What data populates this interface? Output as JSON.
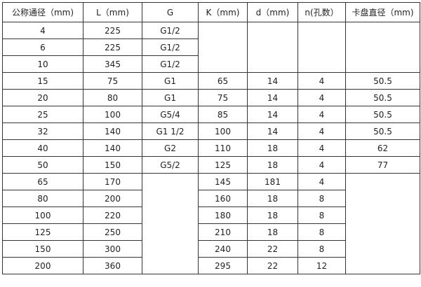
{
  "headers": [
    "公称通径（mm)",
    "L（mm)",
    "G",
    "K（mm)",
    "d（mm)",
    "n(孔数）",
    "卡盘直径（mm)"
  ],
  "rows": [
    [
      "4",
      "225",
      "G1/2",
      "",
      "",
      "",
      ""
    ],
    [
      "6",
      "225",
      "G1/2",
      "",
      "",
      "",
      ""
    ],
    [
      "10",
      "345",
      "G1/2",
      "",
      "",
      "",
      ""
    ],
    [
      "15",
      "75",
      "G1",
      "65",
      "14",
      "4",
      "50.5"
    ],
    [
      "20",
      "80",
      "G1",
      "75",
      "14",
      "4",
      "50.5"
    ],
    [
      "25",
      "100",
      "G5/4",
      "85",
      "14",
      "4",
      "50.5"
    ],
    [
      "32",
      "140",
      "G1  1/2",
      "100",
      "14",
      "4",
      "50.5"
    ],
    [
      "40",
      "140",
      "G2",
      "110",
      "18",
      "4",
      "62"
    ],
    [
      "50",
      "150",
      "G5/2",
      "125",
      "18",
      "4",
      "77"
    ],
    [
      "65",
      "170",
      "",
      "145",
      "181",
      "4",
      ""
    ],
    [
      "80",
      "200",
      "",
      "160",
      "18",
      "8",
      ""
    ],
    [
      "100",
      "220",
      "",
      "180",
      "18",
      "8",
      ""
    ],
    [
      "125",
      "250",
      "",
      "210",
      "18",
      "8",
      ""
    ],
    [
      "150",
      "300",
      "",
      "240",
      "22",
      "8",
      ""
    ],
    [
      "200",
      "360",
      "",
      "295",
      "22",
      "12",
      ""
    ]
  ]
}
